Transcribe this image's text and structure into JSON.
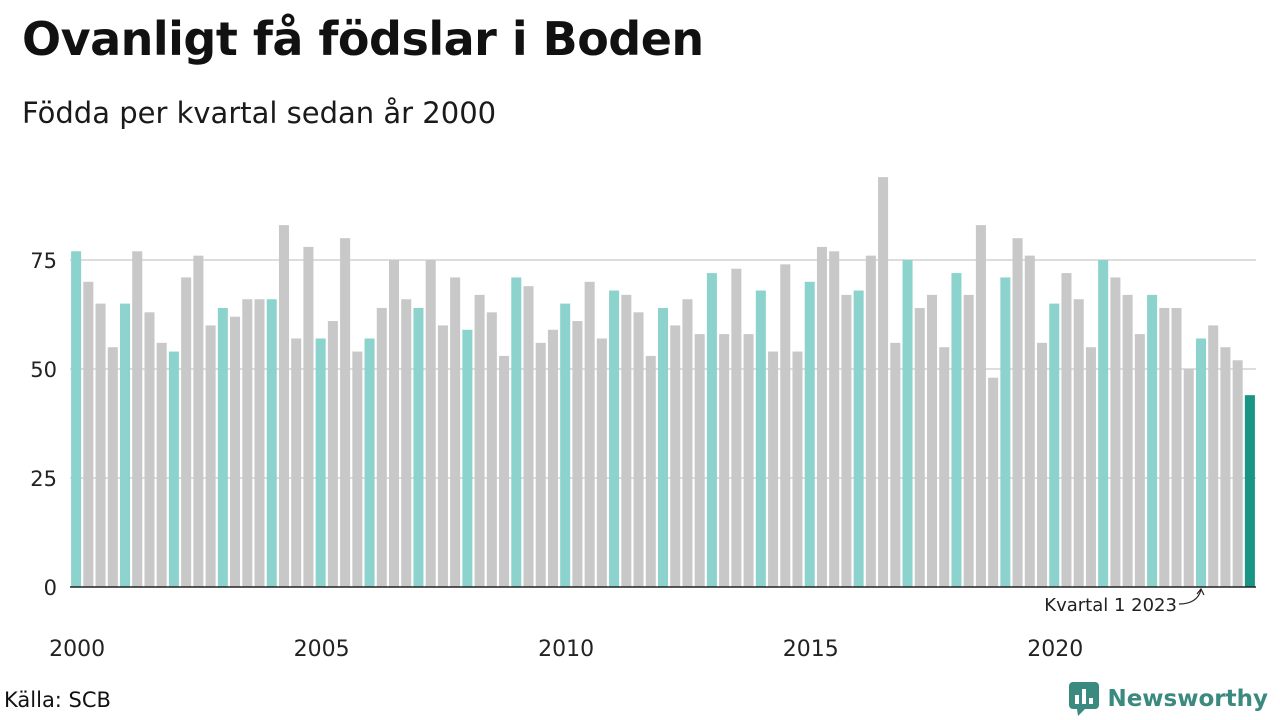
{
  "title": "Ovanligt få födslar i Boden",
  "subtitle": "Födda per kvartal sedan år 2000",
  "source": "Källa: SCB",
  "brand": "Newsworthy",
  "colors": {
    "quarter1": "#8dd3cd",
    "other": "#c8c8c8",
    "highlight": "#1a9585",
    "grid": "#dddddd",
    "axis": "#222222",
    "brand": "#3b8a80"
  },
  "chart_data": {
    "type": "bar",
    "ylim": [
      0,
      100
    ],
    "yticks": [
      0,
      25,
      50,
      75
    ],
    "xtick_labels": [
      "2000",
      "2005",
      "2010",
      "2015",
      "2020"
    ],
    "start_year": 2000,
    "annotation": "Kvartal 1 2023",
    "values": [
      77,
      70,
      65,
      55,
      65,
      77,
      63,
      56,
      54,
      71,
      76,
      60,
      64,
      62,
      66,
      66,
      66,
      83,
      57,
      78,
      57,
      61,
      80,
      54,
      57,
      64,
      75,
      66,
      64,
      75,
      60,
      71,
      59,
      67,
      63,
      53,
      71,
      69,
      56,
      59,
      65,
      61,
      70,
      57,
      68,
      67,
      63,
      53,
      64,
      60,
      66,
      58,
      72,
      58,
      73,
      58,
      68,
      54,
      74,
      54,
      70,
      78,
      77,
      67,
      68,
      76,
      94,
      56,
      75,
      64,
      67,
      55,
      72,
      67,
      83,
      48,
      71,
      80,
      76,
      56,
      65,
      72,
      66,
      55,
      75,
      71,
      67,
      58,
      67,
      64,
      64,
      50,
      57,
      60,
      55,
      52,
      44
    ]
  }
}
